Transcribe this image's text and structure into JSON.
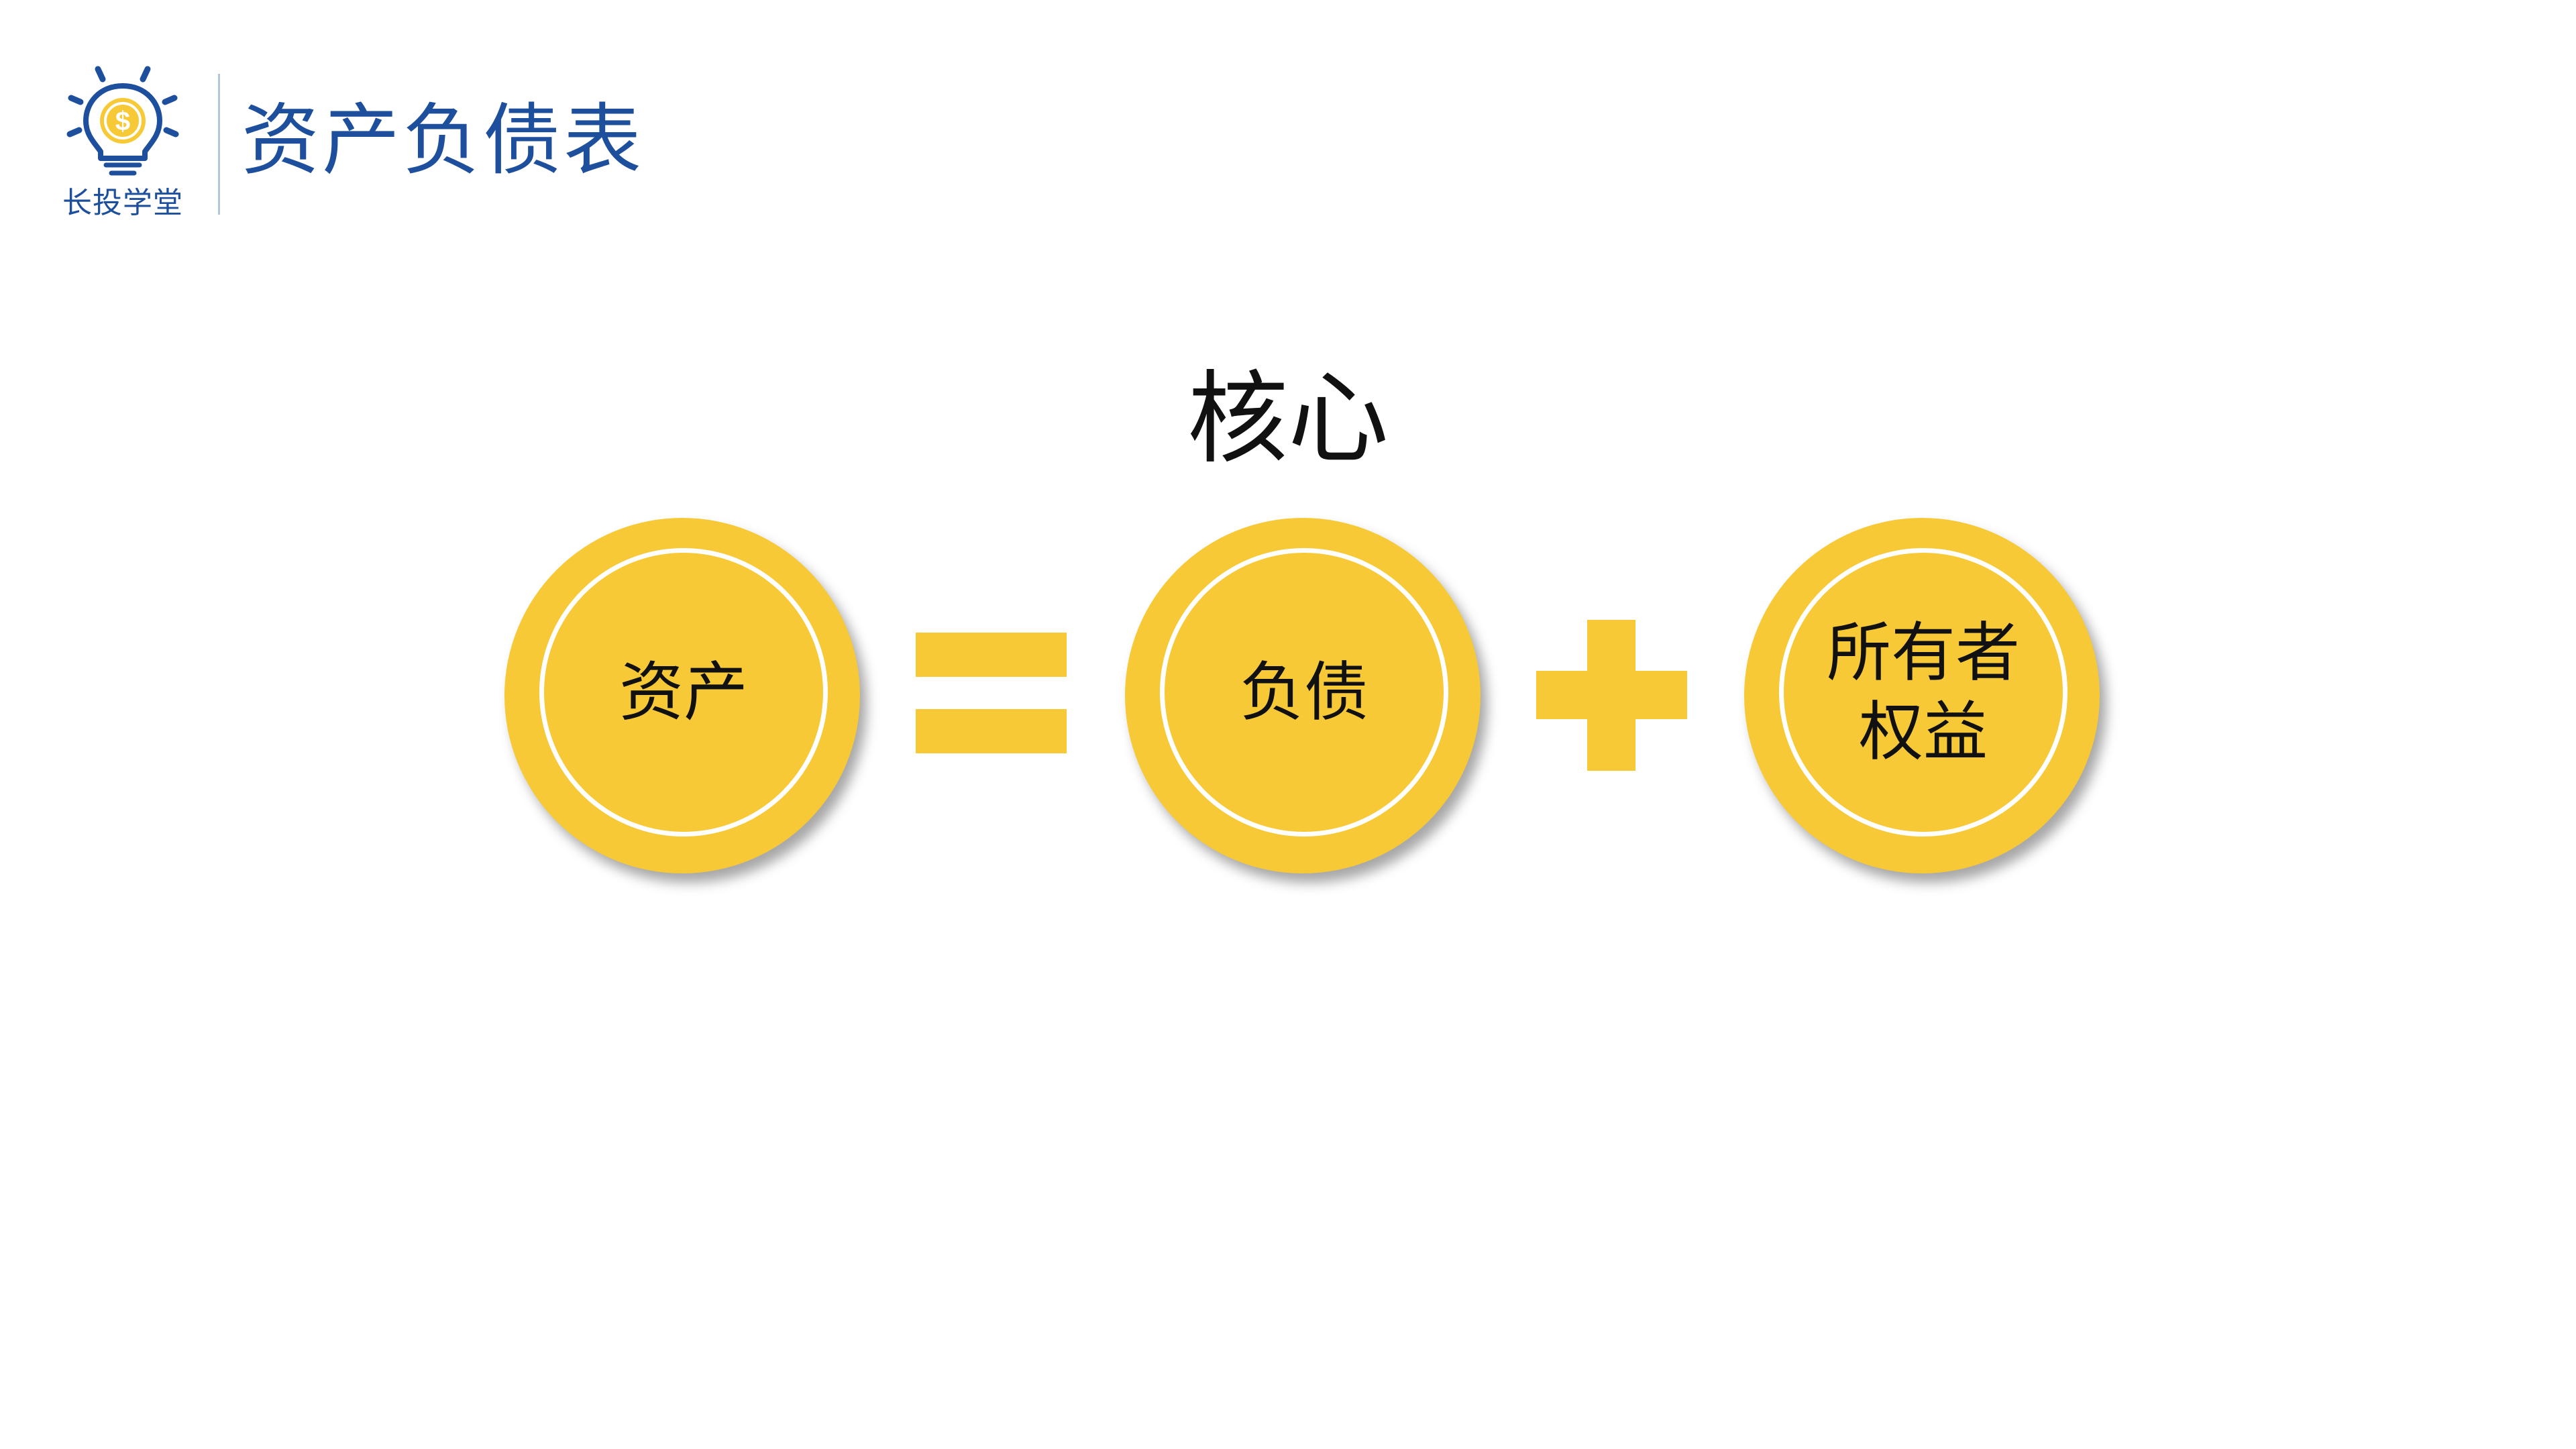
{
  "header": {
    "logo_text": "长投学堂",
    "title": "资产负债表"
  },
  "main": {
    "heading": "核心",
    "circles": [
      {
        "label": "资产"
      },
      {
        "label": "负债"
      },
      {
        "label": "所有者\n权益"
      }
    ],
    "operators": [
      "equals",
      "plus"
    ]
  },
  "colors": {
    "brand_blue": "#1d4f9c",
    "accent_yellow": "#f7c936",
    "ring_white": "#ffffff",
    "text_dark": "#111111"
  },
  "icons": {
    "logo": "lightbulb-dollar-icon"
  }
}
